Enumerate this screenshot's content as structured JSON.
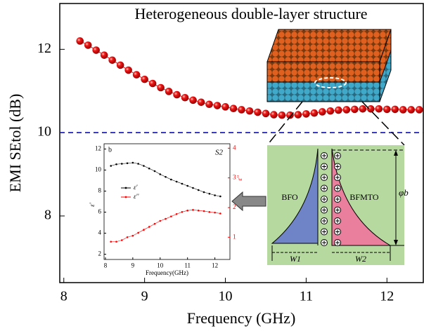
{
  "chart_data": [
    {
      "type": "line",
      "title": "Heterogeneous double-layer structure",
      "xlabel": "Frequency (GHz)",
      "ylabel": "EMI SEtol (dB)",
      "x": [
        8.2,
        8.3,
        8.4,
        8.5,
        8.6,
        8.7,
        8.8,
        8.9,
        9.0,
        9.1,
        9.2,
        9.3,
        9.4,
        9.5,
        9.6,
        9.7,
        9.8,
        9.9,
        10.0,
        10.1,
        10.2,
        10.3,
        10.4,
        10.5,
        10.6,
        10.7,
        10.8,
        10.9,
        11.0,
        11.1,
        11.2,
        11.3,
        11.4,
        11.5,
        11.6,
        11.7,
        11.8,
        11.9,
        12.0,
        12.1,
        12.2,
        12.3,
        12.4
      ],
      "values": [
        12.2,
        12.1,
        11.98,
        11.86,
        11.74,
        11.62,
        11.5,
        11.39,
        11.28,
        11.18,
        11.08,
        10.99,
        10.91,
        10.84,
        10.78,
        10.73,
        10.68,
        10.65,
        10.62,
        10.58,
        10.55,
        10.52,
        10.49,
        10.46,
        10.43,
        10.42,
        10.42,
        10.43,
        10.45,
        10.47,
        10.5,
        10.52,
        10.54,
        10.55,
        10.56,
        10.57,
        10.57,
        10.57,
        10.56,
        10.56,
        10.55,
        10.55,
        10.55
      ],
      "color": "#e01010",
      "reference_line": 10,
      "reference_color": "#1c1cd8",
      "xlim": [
        7.95,
        12.45
      ],
      "ylim": [
        6.4,
        13.1
      ],
      "xticks": [
        8,
        9,
        10,
        11,
        12
      ],
      "yticks": [
        8,
        10,
        12
      ]
    },
    {
      "type": "line",
      "panel_label": "b",
      "title": "S2",
      "xlabel": "Frequency(GHz)",
      "ylabel": "ε'",
      "y2label": "ε''",
      "x": [
        8.2,
        8.4,
        8.6,
        8.8,
        9.0,
        9.2,
        9.4,
        9.6,
        9.8,
        10.0,
        10.2,
        10.4,
        10.6,
        10.8,
        11.0,
        11.2,
        11.4,
        11.6,
        11.8,
        12.0,
        12.2
      ],
      "series": [
        {
          "name": "ε'",
          "color": "#000000",
          "values": [
            10.4,
            10.55,
            10.6,
            10.65,
            10.7,
            10.6,
            10.4,
            10.15,
            9.9,
            9.6,
            9.35,
            9.1,
            8.9,
            8.7,
            8.5,
            8.3,
            8.1,
            7.9,
            7.75,
            7.6,
            7.5
          ]
        },
        {
          "name": "ε''",
          "color": "#ff0000",
          "axis": "y2",
          "values": [
            0.85,
            0.85,
            0.9,
            1.0,
            1.05,
            1.15,
            1.25,
            1.35,
            1.45,
            1.55,
            1.62,
            1.7,
            1.78,
            1.85,
            1.9,
            1.92,
            1.9,
            1.88,
            1.85,
            1.83,
            1.8
          ]
        }
      ],
      "xlim": [
        7.95,
        12.55
      ],
      "ylim": [
        1.5,
        12.5
      ],
      "y2lim": [
        0.25,
        4.15
      ],
      "xticks": [
        8,
        9,
        10,
        11,
        12
      ],
      "yticks": [
        2,
        4,
        6,
        8,
        10,
        12
      ],
      "y2ticks": [
        1,
        2,
        3,
        4
      ]
    }
  ],
  "diagram": {
    "left_layer": "BFO",
    "right_layer": "BFMTO",
    "width_left": "W1",
    "width_right": "W2",
    "barrier": "φb"
  }
}
